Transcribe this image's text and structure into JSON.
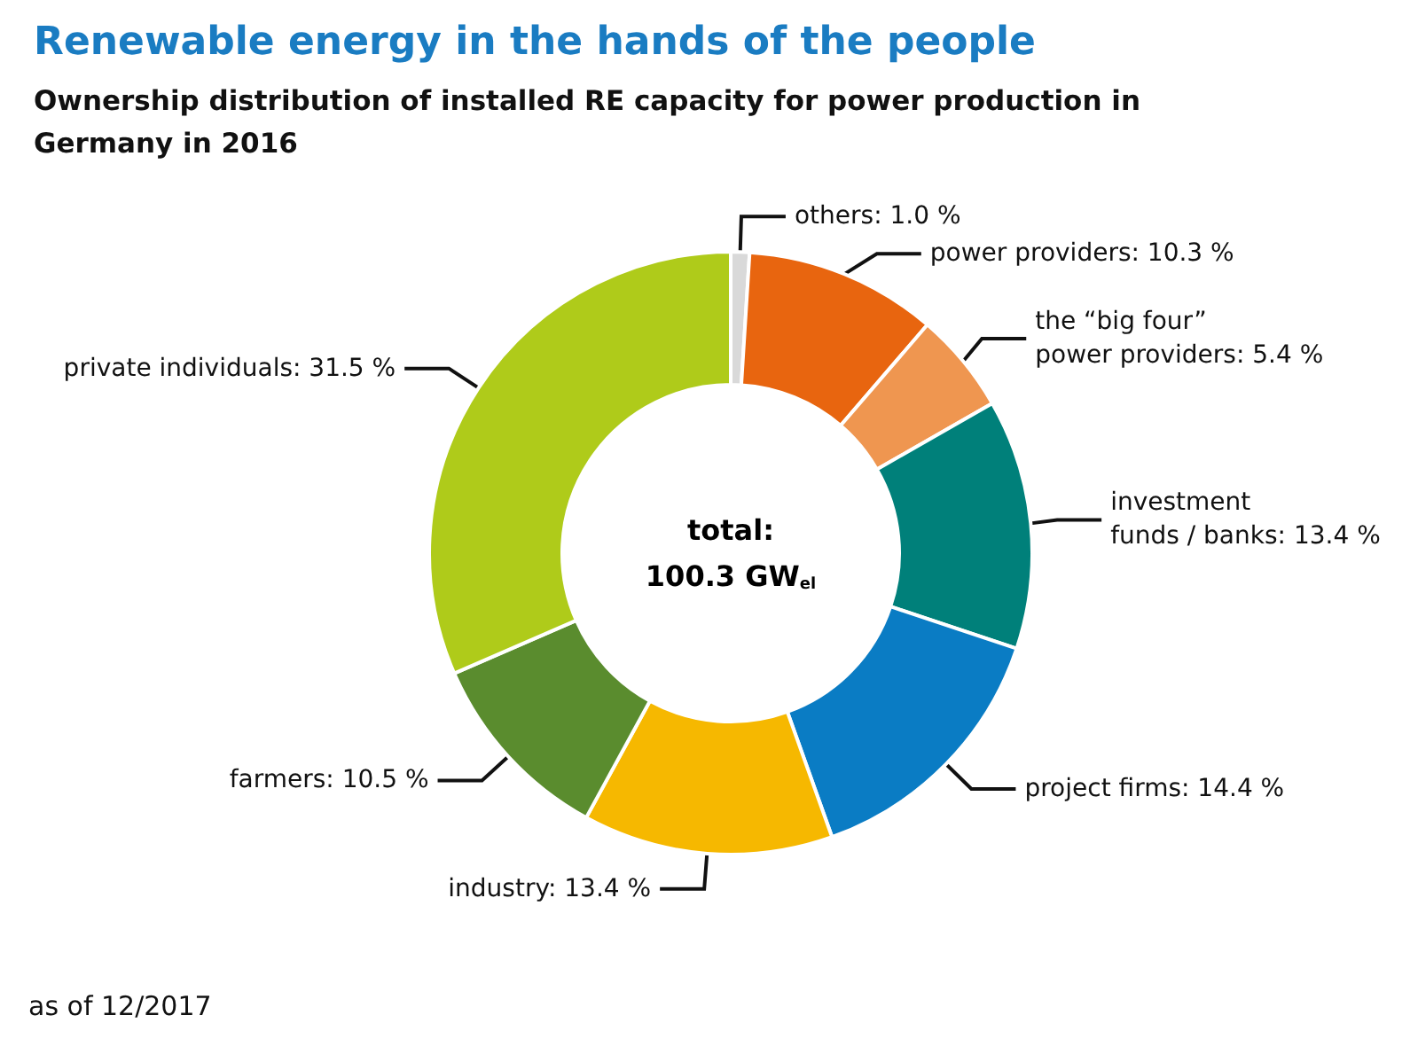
{
  "chart_data": {
    "type": "donut",
    "title": "Renewable energy in the hands of the people",
    "subtitle": "Ownership distribution of installed RE capacity for power production in\nGermany in 2016",
    "categories": [
      "others",
      "power providers",
      "the “big four”\npower providers",
      "investment\nfunds / banks",
      "project firms",
      "industry",
      "farmers",
      "private individuals"
    ],
    "values": [
      1.0,
      10.3,
      5.4,
      13.4,
      14.4,
      13.4,
      10.5,
      31.5
    ],
    "value_labels": [
      "1.0 %",
      "10.3 %",
      "5.4 %",
      "13.4 %",
      "14.4 %",
      "13.4 %",
      "10.5 %",
      "31.5 %"
    ],
    "colors": [
      "#d9d9d9",
      "#e8650f",
      "#ef9650",
      "#00807a",
      "#0a7cc4",
      "#f6b800",
      "#5a8c2e",
      "#afcb1a"
    ],
    "annotations": [
      "total:\n100.3 GW$_{el}$",
      "as of 12/2017"
    ],
    "legend": false
  }
}
